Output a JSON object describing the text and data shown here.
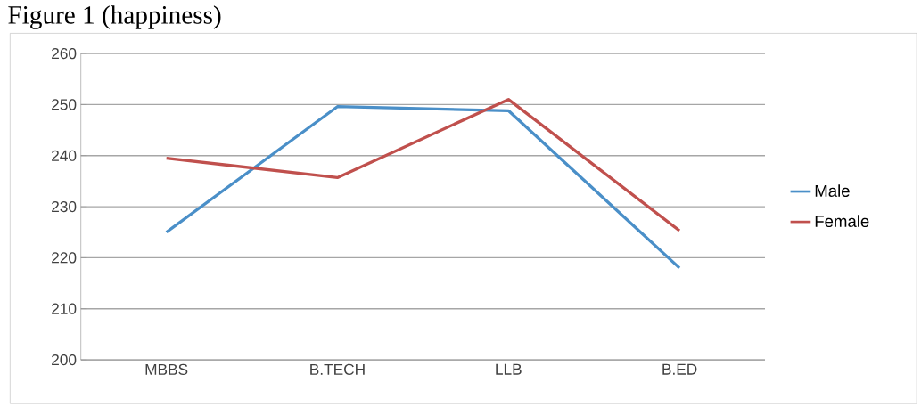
{
  "chart_data": {
    "type": "line",
    "title": "Figure 1 (happiness)",
    "categories": [
      "MBBS",
      "B.TECH",
      "LLB",
      "B.ED"
    ],
    "series": [
      {
        "name": "Male",
        "color": "#4a8fc8",
        "values": [
          225,
          249.6,
          248.8,
          218
        ]
      },
      {
        "name": "Female",
        "color": "#c0504d",
        "values": [
          239.5,
          235.7,
          251,
          225.3
        ]
      }
    ],
    "ylim": [
      200,
      260
    ],
    "yticks": [
      200,
      210,
      220,
      230,
      240,
      250,
      260
    ],
    "grid": "y",
    "legend": "right",
    "marker": "none"
  }
}
